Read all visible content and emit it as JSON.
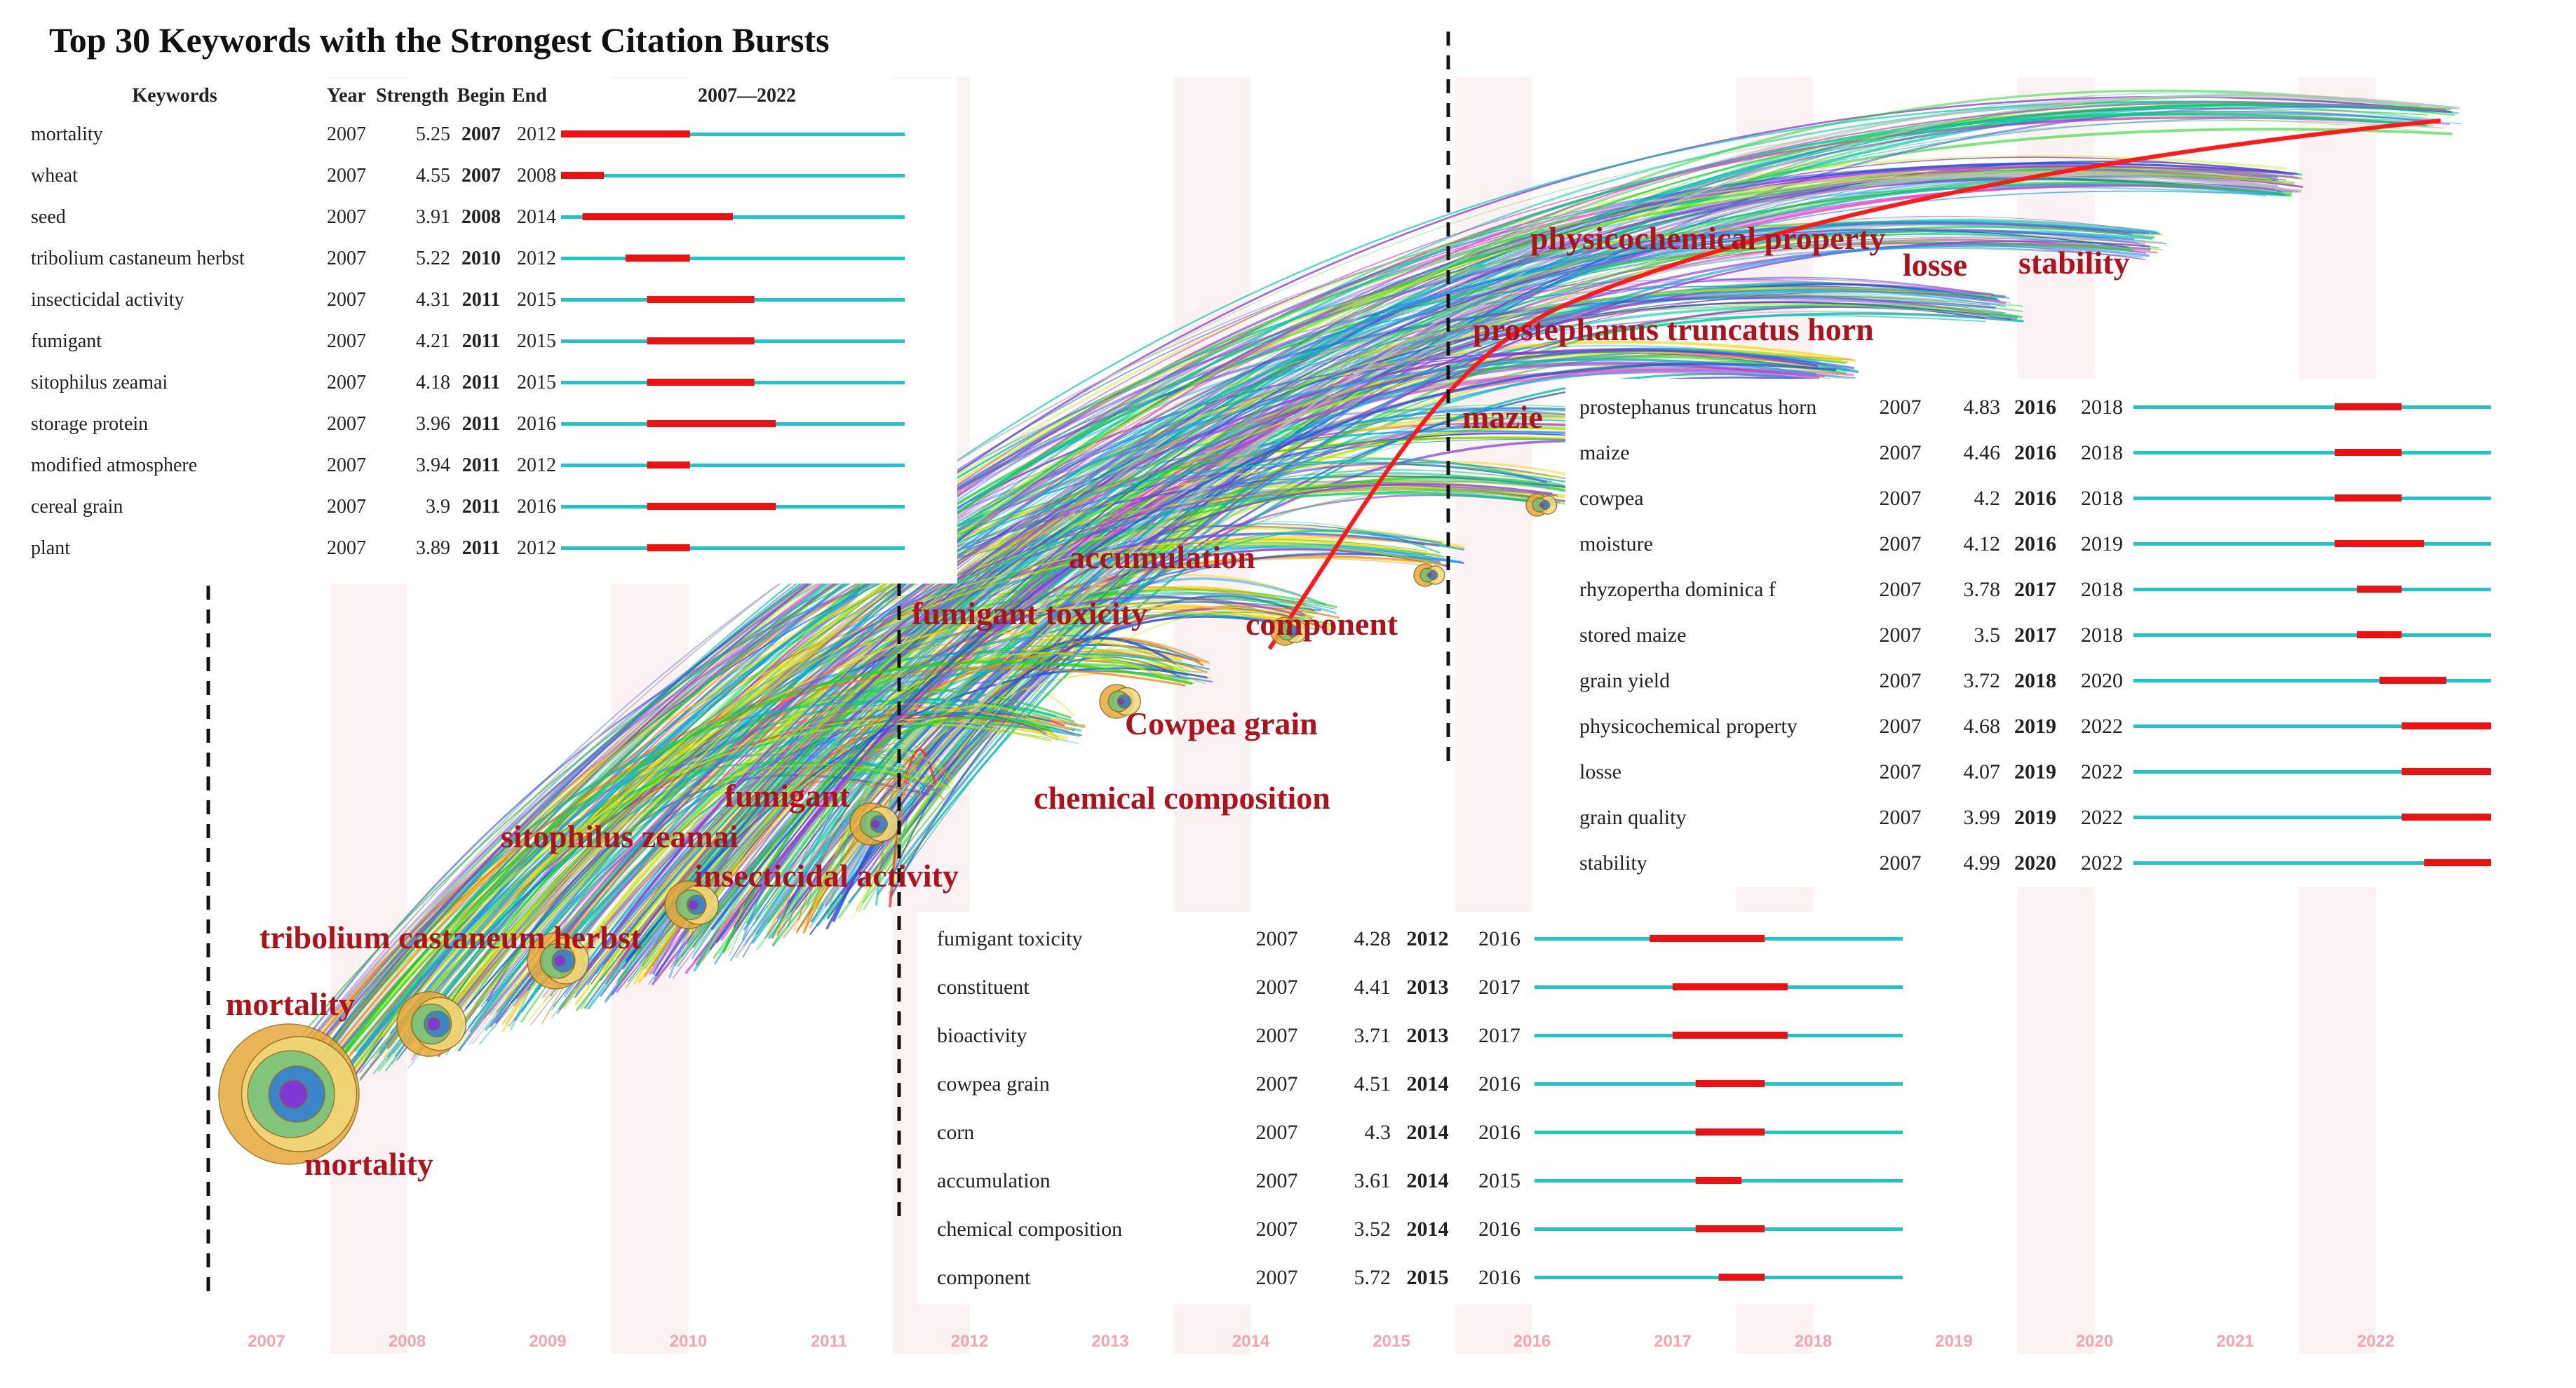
{
  "title": "Top 30 Keywords with the Strongest Citation Bursts",
  "table_header": {
    "keywords": "Keywords",
    "year": "Year",
    "strength": "Strength",
    "begin": "Begin",
    "end": "End",
    "range": "2007—2022"
  },
  "colors": {
    "burst": "#ee1111",
    "baseline": "#1fc6c9",
    "keyword_label": "#b0121b",
    "year_label": "#f2a7ac",
    "year_stripe": "#fdf2f3",
    "dashed_line": "#111111"
  },
  "chart_data": {
    "type": "table",
    "range_start": 2007,
    "range_end": 2022,
    "bursts": [
      {
        "keyword": "mortality",
        "year": "2007",
        "strength": "5.25",
        "begin": "2007",
        "end": "2012"
      },
      {
        "keyword": "wheat",
        "year": "2007",
        "strength": "4.55",
        "begin": "2007",
        "end": "2008"
      },
      {
        "keyword": "seed",
        "year": "2007",
        "strength": "3.91",
        "begin": "2008",
        "end": "2014"
      },
      {
        "keyword": "tribolium castaneum herbst",
        "year": "2007",
        "strength": "5.22",
        "begin": "2010",
        "end": "2012"
      },
      {
        "keyword": "insecticidal activity",
        "year": "2007",
        "strength": "4.31",
        "begin": "2011",
        "end": "2015"
      },
      {
        "keyword": "fumigant",
        "year": "2007",
        "strength": "4.21",
        "begin": "2011",
        "end": "2015"
      },
      {
        "keyword": "sitophilus zeamai",
        "year": "2007",
        "strength": "4.18",
        "begin": "2011",
        "end": "2015"
      },
      {
        "keyword": "storage protein",
        "year": "2007",
        "strength": "3.96",
        "begin": "2011",
        "end": "2016"
      },
      {
        "keyword": "modified atmosphere",
        "year": "2007",
        "strength": "3.94",
        "begin": "2011",
        "end": "2012"
      },
      {
        "keyword": "cereal grain",
        "year": "2007",
        "strength": "3.9",
        "begin": "2011",
        "end": "2016"
      },
      {
        "keyword": "plant",
        "year": "2007",
        "strength": "3.89",
        "begin": "2011",
        "end": "2012"
      },
      {
        "keyword": "fumigant toxicity",
        "year": "2007",
        "strength": "4.28",
        "begin": "2012",
        "end": "2016"
      },
      {
        "keyword": "constituent",
        "year": "2007",
        "strength": "4.41",
        "begin": "2013",
        "end": "2017"
      },
      {
        "keyword": "bioactivity",
        "year": "2007",
        "strength": "3.71",
        "begin": "2013",
        "end": "2017"
      },
      {
        "keyword": "cowpea grain",
        "year": "2007",
        "strength": "4.51",
        "begin": "2014",
        "end": "2016"
      },
      {
        "keyword": "corn",
        "year": "2007",
        "strength": "4.3",
        "begin": "2014",
        "end": "2016"
      },
      {
        "keyword": "accumulation",
        "year": "2007",
        "strength": "3.61",
        "begin": "2014",
        "end": "2015"
      },
      {
        "keyword": "chemical composition",
        "year": "2007",
        "strength": "3.52",
        "begin": "2014",
        "end": "2016"
      },
      {
        "keyword": "component",
        "year": "2007",
        "strength": "5.72",
        "begin": "2015",
        "end": "2016"
      },
      {
        "keyword": "prostephanus truncatus horn",
        "year": "2007",
        "strength": "4.83",
        "begin": "2016",
        "end": "2018"
      },
      {
        "keyword": "maize",
        "year": "2007",
        "strength": "4.46",
        "begin": "2016",
        "end": "2018"
      },
      {
        "keyword": "cowpea",
        "year": "2007",
        "strength": "4.2",
        "begin": "2016",
        "end": "2018"
      },
      {
        "keyword": "moisture",
        "year": "2007",
        "strength": "4.12",
        "begin": "2016",
        "end": "2019"
      },
      {
        "keyword": "rhyzopertha dominica f",
        "year": "2007",
        "strength": "3.78",
        "begin": "2017",
        "end": "2018"
      },
      {
        "keyword": "stored maize",
        "year": "2007",
        "strength": "3.5",
        "begin": "2017",
        "end": "2018"
      },
      {
        "keyword": "grain yield",
        "year": "2007",
        "strength": "3.72",
        "begin": "2018",
        "end": "2020"
      },
      {
        "keyword": "physicochemical property",
        "year": "2007",
        "strength": "4.68",
        "begin": "2019",
        "end": "2022"
      },
      {
        "keyword": "losse",
        "year": "2007",
        "strength": "4.07",
        "begin": "2019",
        "end": "2022"
      },
      {
        "keyword": "grain quality",
        "year": "2007",
        "strength": "3.99",
        "begin": "2019",
        "end": "2022"
      },
      {
        "keyword": "stability",
        "year": "2007",
        "strength": "4.99",
        "begin": "2020",
        "end": "2022"
      }
    ],
    "timeline_years": [
      "2007",
      "2008",
      "2009",
      "2010",
      "2011",
      "2012",
      "2013",
      "2014",
      "2015",
      "2016",
      "2017",
      "2018",
      "2019",
      "2020",
      "2021",
      "2022"
    ],
    "timeline_keywords": [
      "physicochemical property",
      "losse",
      "stability",
      "prostephanus truncatus horn",
      "mazie",
      "accumulation",
      "fumigant toxicity",
      "component",
      "Cowpea grain",
      "fumigant",
      "chemical composition",
      "sitophilus zeamai",
      "insecticidal activity",
      "tribolium castaneum herbst",
      "mortality",
      "mortality"
    ]
  }
}
